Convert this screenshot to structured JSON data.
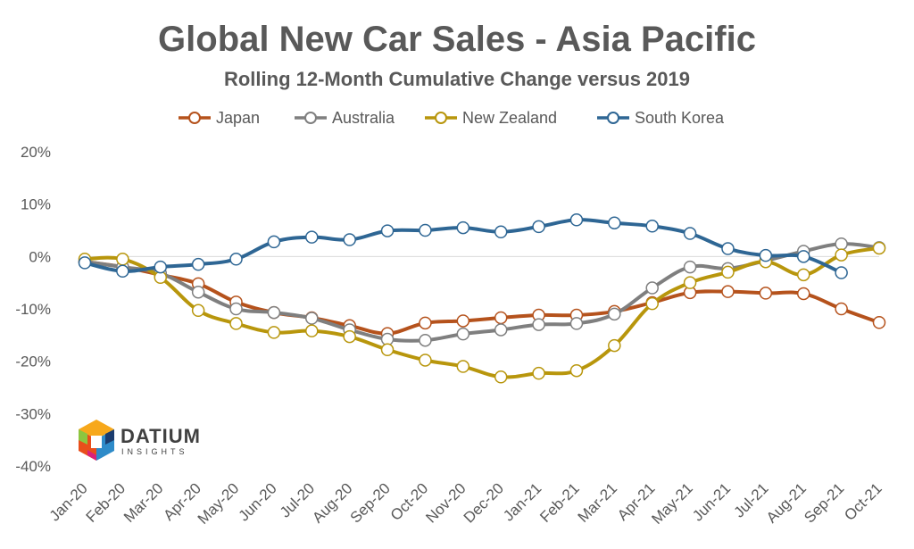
{
  "chart_data": {
    "type": "line",
    "title": "Global New Car Sales - Asia Pacific",
    "subtitle": "Rolling 12-Month Cumulative Change versus 2019",
    "xlabel": "",
    "ylabel": "",
    "categories": [
      "Jan-20",
      "Feb-20",
      "Mar-20",
      "Apr-20",
      "May-20",
      "Jun-20",
      "Jul-20",
      "Aug-20",
      "Sep-20",
      "Oct-20",
      "Nov-20",
      "Dec-20",
      "Jan-21",
      "Feb-21",
      "Mar-21",
      "Apr-21",
      "May-21",
      "Jun-21",
      "Jul-21",
      "Aug-21",
      "Sep-21",
      "Oct-21"
    ],
    "ylim": [
      -40,
      20
    ],
    "yticks": [
      20,
      10,
      0,
      -10,
      -20,
      -30,
      -40
    ],
    "ytick_labels": [
      "20%",
      "10%",
      "0%",
      "-10%",
      "-20%",
      "-30%",
      "-40%"
    ],
    "grid": false,
    "legend_position": "top",
    "series": [
      {
        "name": "Japan",
        "color": "#B5521C",
        "values": [
          -1.0,
          -2.0,
          -3.5,
          -5.2,
          -8.7,
          -10.7,
          -11.7,
          -13.2,
          -14.7,
          -12.7,
          -12.3,
          -11.7,
          -11.2,
          -11.2,
          -10.5,
          -8.8,
          -6.9,
          -6.7,
          -7.0,
          -7.1,
          -10.0,
          -12.6
        ]
      },
      {
        "name": "Australia",
        "color": "#7F7F7F",
        "values": [
          -1.0,
          -2.0,
          -3.2,
          -6.8,
          -10.0,
          -10.7,
          -11.8,
          -14.0,
          -15.8,
          -16.0,
          -14.8,
          -14.0,
          -13.0,
          -12.8,
          -11.0,
          -6.0,
          -2.0,
          -2.3,
          -0.8,
          1.0,
          2.4,
          1.7
        ]
      },
      {
        "name": "New Zealand",
        "color": "#B8960C",
        "values": [
          -0.5,
          -0.5,
          -4.0,
          -10.3,
          -12.8,
          -14.5,
          -14.2,
          -15.3,
          -17.8,
          -19.8,
          -21.0,
          -23.0,
          -22.3,
          -21.8,
          -17.0,
          -9.0,
          -5.0,
          -3.0,
          -1.0,
          -3.5,
          0.3,
          1.6
        ]
      },
      {
        "name": "South Korea",
        "color": "#2E6694",
        "values": [
          -1.2,
          -2.8,
          -2.0,
          -1.5,
          -0.5,
          2.8,
          3.7,
          3.2,
          4.9,
          5.0,
          5.5,
          4.7,
          5.7,
          7.0,
          6.4,
          5.8,
          4.4,
          1.5,
          0.2,
          0.0,
          -3.1,
          null
        ]
      }
    ]
  },
  "logo": {
    "name": "DATIUM",
    "tagline": "INSIGHTS",
    "icon": "datium-cube-logo"
  }
}
